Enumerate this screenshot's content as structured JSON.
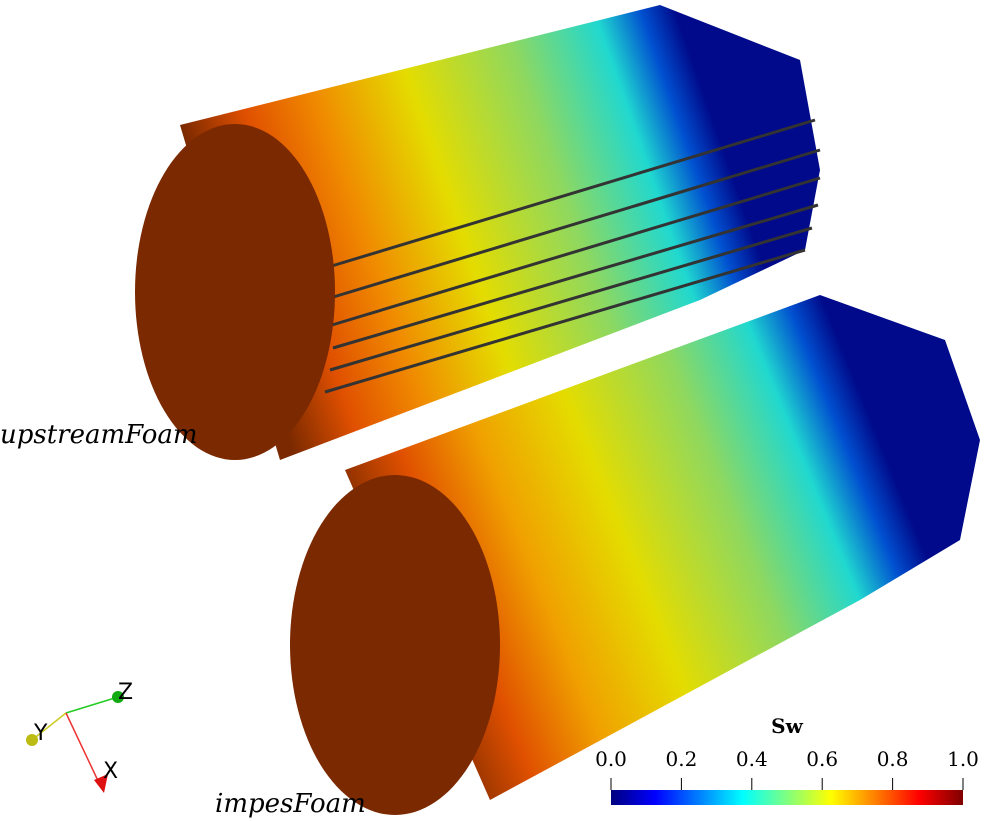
{
  "labels": {
    "top": "upstreamFoam",
    "bottom": "impesFoam"
  },
  "colorbar": {
    "title": "Sw",
    "ticks": [
      {
        "value": 0,
        "label": "0.0"
      },
      {
        "value": 0.2,
        "label": "0.2"
      },
      {
        "value": 0.4,
        "label": "0.4"
      },
      {
        "value": 0.6,
        "label": "0.6"
      },
      {
        "value": 0.8,
        "label": "0.8"
      },
      {
        "value": 1,
        "label": "1.0"
      }
    ]
  },
  "axes": {
    "x": "X",
    "y": "Y",
    "z": "Z"
  }
}
